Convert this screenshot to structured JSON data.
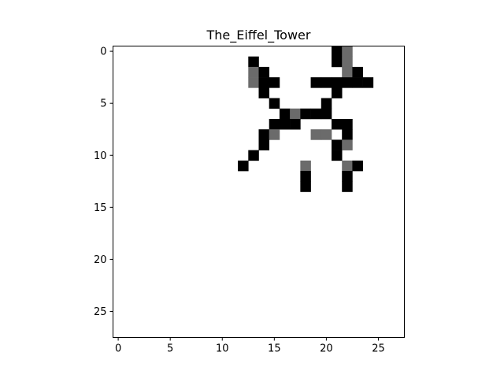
{
  "chart_data": {
    "type": "heatmap",
    "title": "The_Eiffel_Tower",
    "xlabel": "",
    "ylabel": "",
    "rows": 28,
    "cols": 28,
    "xlim": [
      -0.5,
      27.5
    ],
    "ylim": [
      27.5,
      -0.5
    ],
    "x_ticks": [
      0,
      5,
      10,
      15,
      20,
      25
    ],
    "y_ticks": [
      0,
      5,
      10,
      15,
      20,
      25
    ],
    "colormap": "gray_r",
    "grid": false,
    "levels": {
      "0": "#ffffff",
      "1": "#6b6b6b",
      "2": "#000000"
    },
    "values": [
      "0000000000000000000002100000",
      "0000000000000200000002100000",
      "0000000000000120000000120000",
      "0000000000000122000222222000",
      "0000000000000020000002000000",
      "0000000000000002000020000000",
      "0000000000000000212220000000",
      "0000000000000002220002200000",
      "0000000000000021000110200000",
      "0000000000000020000002100000",
      "0000000000000200000002000000",
      "0000000000002000001000120000",
      "0000000000000000002000200000",
      "0000000000000000002000200000",
      "0000000000000000000000000000",
      "0000000000000000000000000000",
      "0000000000000000000000000000",
      "0000000000000000000000000000",
      "0000000000000000000000000000",
      "0000000000000000000000000000",
      "0000000000000000000000000000",
      "0000000000000000000000000000",
      "0000000000000000000000000000",
      "0000000000000000000000000000",
      "0000000000000000000000000000",
      "0000000000000000000000000000",
      "0000000000000000000000000000",
      "0000000000000000000000000000"
    ]
  }
}
